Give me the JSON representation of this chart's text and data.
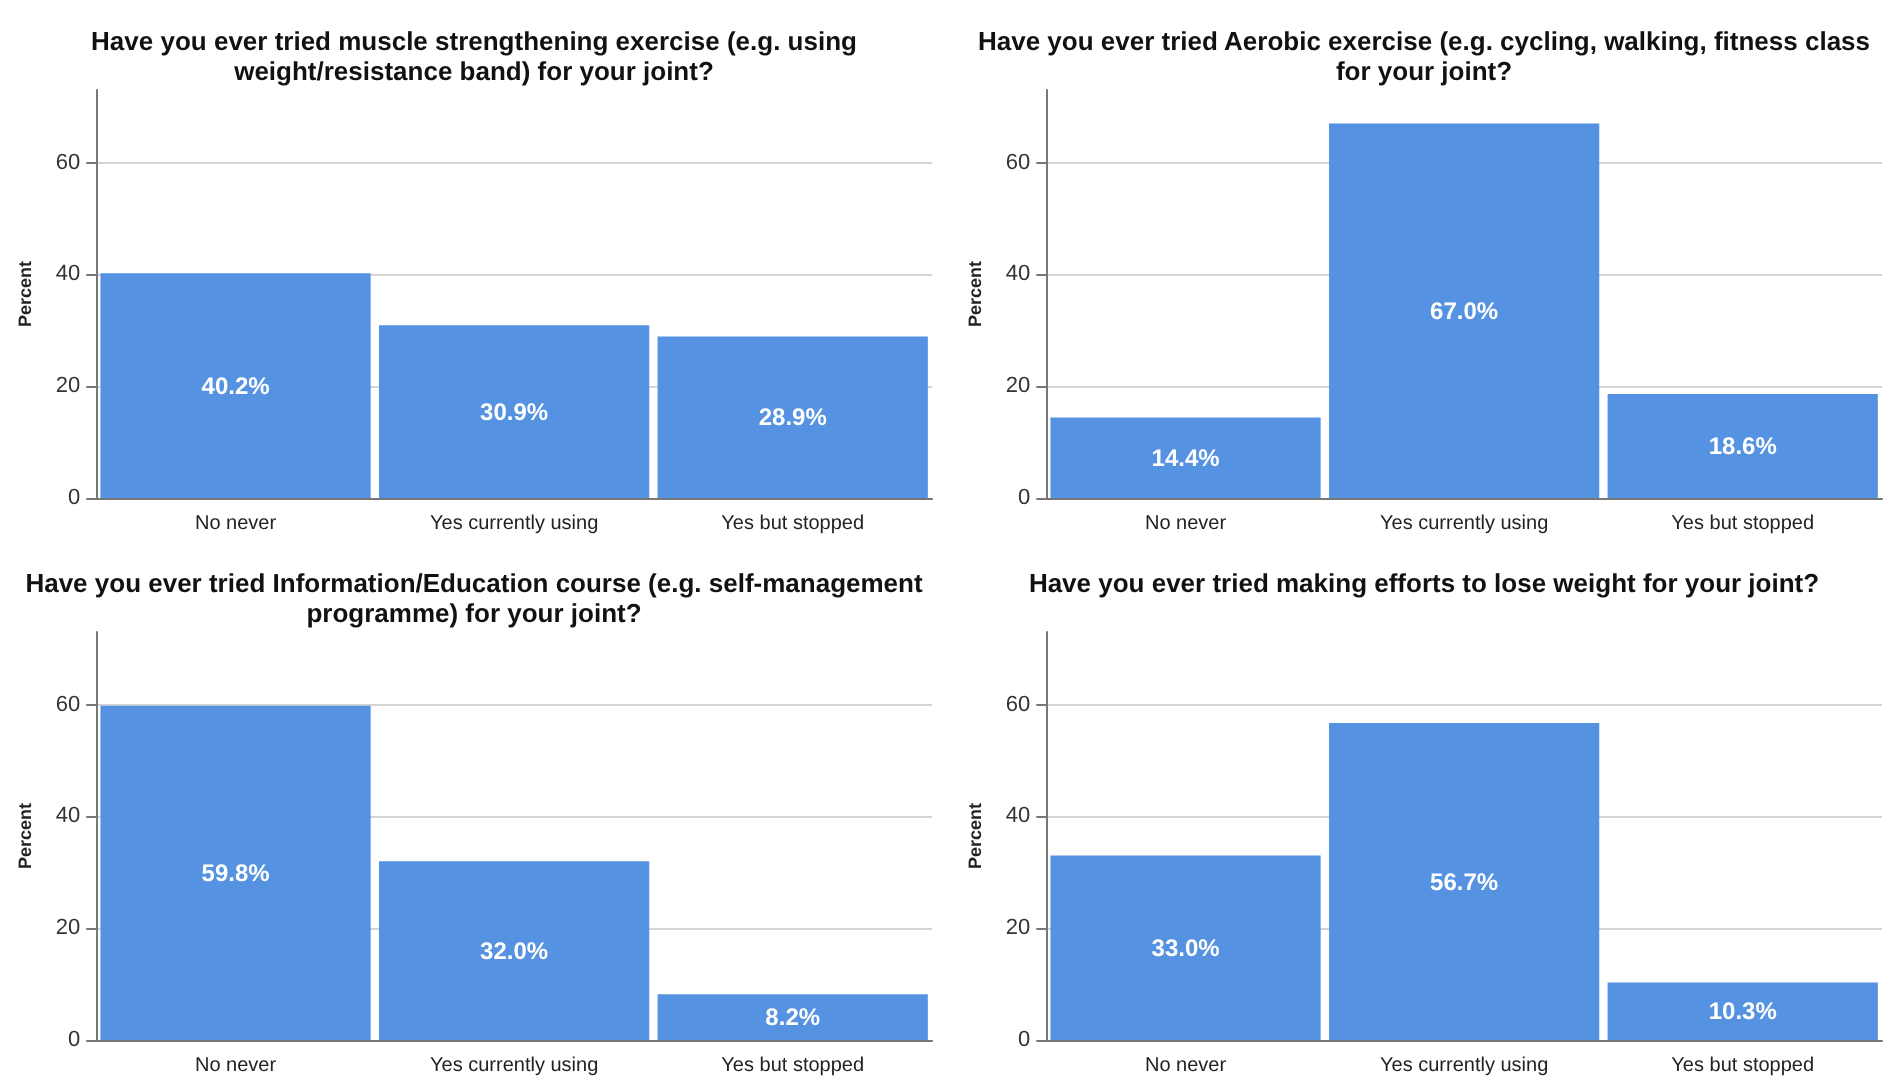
{
  "chart_data": [
    {
      "type": "bar",
      "title": "Have you ever tried muscle strengthening exercise (e.g. using\nweight/resistance band) for your joint?",
      "ylabel": "Percent",
      "categories": [
        "No never",
        "Yes currently using",
        "Yes but stopped"
      ],
      "values": [
        40.2,
        30.9,
        28.9
      ],
      "value_labels": [
        "40.2%",
        "30.9%",
        "28.9%"
      ],
      "color": "#5592e1",
      "ylim": [
        0,
        73
      ],
      "yticks": [
        0,
        20,
        40,
        60
      ],
      "grid": "y"
    },
    {
      "type": "bar",
      "title": "Have you ever tried Aerobic exercise (e.g. cycling, walking, fitness class\nfor your joint?",
      "ylabel": "Percent",
      "categories": [
        "No never",
        "Yes currently using",
        "Yes but stopped"
      ],
      "values": [
        14.4,
        67.0,
        18.6
      ],
      "value_labels": [
        "14.4%",
        "67.0%",
        "18.6%"
      ],
      "color": "#5592e1",
      "ylim": [
        0,
        73
      ],
      "yticks": [
        0,
        20,
        40,
        60
      ],
      "grid": "y"
    },
    {
      "type": "bar",
      "title": "Have you ever tried Information/Education course (e.g. self-management\nprogramme) for your joint?",
      "ylabel": "Percent",
      "categories": [
        "No never",
        "Yes currently using",
        "Yes but stopped"
      ],
      "values": [
        59.8,
        32.0,
        8.2
      ],
      "value_labels": [
        "59.8%",
        "32.0%",
        "8.2%"
      ],
      "color": "#5592e1",
      "ylim": [
        0,
        73
      ],
      "yticks": [
        0,
        20,
        40,
        60
      ],
      "grid": "y"
    },
    {
      "type": "bar",
      "title": "Have you ever tried making efforts to lose weight for your joint?",
      "ylabel": "Percent",
      "categories": [
        "No never",
        "Yes currently using",
        "Yes but stopped"
      ],
      "values": [
        33.0,
        56.7,
        10.3
      ],
      "value_labels": [
        "33.0%",
        "56.7%",
        "10.3%"
      ],
      "color": "#5592e1",
      "ylim": [
        0,
        73
      ],
      "yticks": [
        0,
        20,
        40,
        60
      ],
      "grid": "y"
    }
  ]
}
